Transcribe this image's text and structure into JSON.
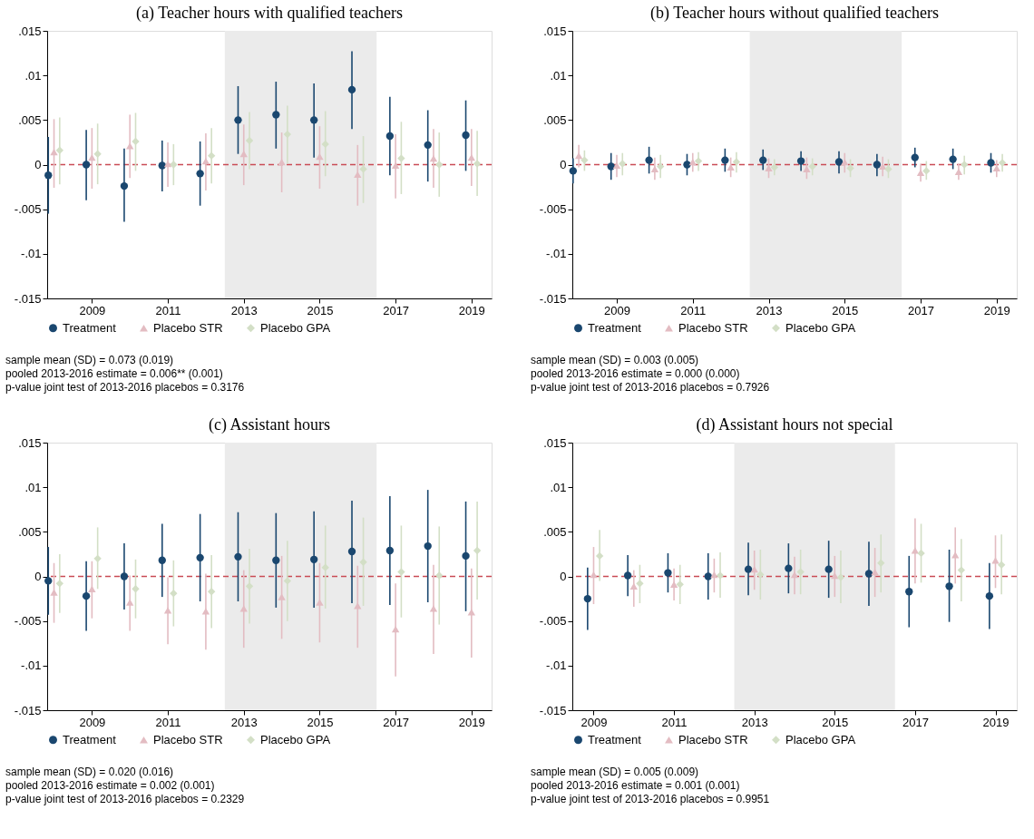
{
  "chart_data": [
    {
      "type": "scatter",
      "title": "(a) Teacher hours with qualified teachers",
      "xlim": [
        2007.82,
        2019.53
      ],
      "ylim": [
        -0.015,
        0.015
      ],
      "xticks": [
        2009,
        2011,
        2013,
        2015,
        2017,
        2019
      ],
      "yticks": [
        {
          "value": -0.015,
          "label": "-.015"
        },
        {
          "value": -0.01,
          "label": "-.01"
        },
        {
          "value": -0.005,
          "label": "-.005"
        },
        0,
        {
          "value": 0.005,
          "label": ".005"
        },
        {
          "value": 0.01,
          "label": ".01"
        },
        {
          "value": 0.015,
          "label": ".015"
        }
      ],
      "grid": false,
      "legend": "bottom",
      "bands": [
        {
          "axis": "x",
          "from": 2012.5,
          "to": 2016.5,
          "color": "#ebebeb"
        }
      ],
      "ref_lines": [
        {
          "axis": "y",
          "value": 0,
          "color": "#c94b55",
          "line_style": "dashed"
        }
      ],
      "annotations": [
        "sample mean (SD) = 0.073 (0.019)",
        "pooled 2013-2016 estimate = 0.006** (0.001)",
        "p-value joint test of 2013-2016 placebos = 0.3176"
      ],
      "series": [
        {
          "name": "Treatment",
          "color": "#1a476f",
          "marker": "circle",
          "x": [
            2007.85,
            2008.85,
            2009.85,
            2010.85,
            2011.85,
            2012.85,
            2013.85,
            2014.85,
            2015.85,
            2016.85,
            2017.85,
            2018.85
          ],
          "values": [
            -0.0012,
            0.0,
            -0.0024,
            -0.0001,
            -0.001,
            0.005,
            0.0056,
            0.005,
            0.0084,
            0.0032,
            0.0022,
            0.0033
          ],
          "errors": [
            [
              -0.0055,
              0.0031
            ],
            [
              -0.004,
              0.0039
            ],
            [
              -0.0064,
              0.0018
            ],
            [
              -0.003,
              0.0027
            ],
            [
              -0.0046,
              0.0026
            ],
            [
              0.0012,
              0.0088
            ],
            [
              0.0018,
              0.0093
            ],
            [
              0.0008,
              0.0091
            ],
            [
              0.004,
              0.0127
            ],
            [
              -0.0012,
              0.0076
            ],
            [
              -0.0019,
              0.0061
            ],
            [
              -0.0007,
              0.0072
            ]
          ]
        },
        {
          "name": "Placebo STR",
          "color": "#e3bcc2",
          "marker": "triangle",
          "x": [
            2008,
            2009,
            2010,
            2011,
            2012,
            2013,
            2014,
            2015,
            2016,
            2017,
            2018,
            2019
          ],
          "values": [
            0.0014,
            0.0008,
            0.0021,
            0.0001,
            0.0004,
            0.0012,
            0.0003,
            0.0009,
            -0.0011,
            -0.0001,
            0.0007,
            0.0008
          ],
          "errors": [
            [
              -0.0026,
              0.0051
            ],
            [
              -0.0027,
              0.0041
            ],
            [
              -0.0015,
              0.0056
            ],
            [
              -0.0025,
              0.0025
            ],
            [
              -0.0029,
              0.0035
            ],
            [
              -0.0023,
              0.0045
            ],
            [
              -0.0031,
              0.0036
            ],
            [
              -0.0027,
              0.0043
            ],
            [
              -0.0046,
              0.0022
            ],
            [
              -0.0038,
              0.0034
            ],
            [
              -0.0026,
              0.004
            ],
            [
              -0.0024,
              0.004
            ]
          ]
        },
        {
          "name": "Placebo GPA",
          "color": "#d3dfc6",
          "marker": "diamond",
          "x": [
            2008.15,
            2009.15,
            2010.15,
            2011.15,
            2012.15,
            2013.15,
            2014.15,
            2015.15,
            2016.15,
            2017.15,
            2018.15,
            2019.15
          ],
          "values": [
            0.0016,
            0.0012,
            0.0026,
            0.0,
            0.001,
            0.0027,
            0.0034,
            0.0023,
            -0.0005,
            0.0007,
            0.0,
            0.0001
          ],
          "errors": [
            [
              -0.0022,
              0.0053
            ],
            [
              -0.0022,
              0.0046
            ],
            [
              -0.0007,
              0.0058
            ],
            [
              -0.0023,
              0.0023
            ],
            [
              -0.0021,
              0.0041
            ],
            [
              -0.0005,
              0.0059
            ],
            [
              0.0001,
              0.0066
            ],
            [
              -0.0013,
              0.006
            ],
            [
              -0.0043,
              0.0032
            ],
            [
              -0.0033,
              0.0048
            ],
            [
              -0.0036,
              0.0036
            ],
            [
              -0.0035,
              0.0038
            ]
          ]
        }
      ]
    },
    {
      "type": "scatter",
      "title": "(b) Teacher hours without qualified teachers",
      "xlim": [
        2007.83,
        2019.53
      ],
      "ylim": [
        -0.015,
        0.015
      ],
      "xticks": [
        2009,
        2011,
        2013,
        2015,
        2017,
        2019
      ],
      "yticks": [
        {
          "value": -0.015,
          "label": "-.015"
        },
        {
          "value": -0.01,
          "label": "-.01"
        },
        {
          "value": -0.005,
          "label": "-.005"
        },
        0,
        {
          "value": 0.005,
          "label": ".005"
        },
        {
          "value": 0.01,
          "label": ".01"
        },
        {
          "value": 0.015,
          "label": ".015"
        }
      ],
      "grid": false,
      "legend": "bottom",
      "bands": [
        {
          "axis": "x",
          "from": 2012.5,
          "to": 2016.5,
          "color": "#ebebeb"
        }
      ],
      "ref_lines": [
        {
          "axis": "y",
          "value": 0,
          "color": "#c94b55",
          "line_style": "dashed"
        }
      ],
      "annotations": [
        "sample mean (SD) = 0.003 (0.005)",
        "pooled 2013-2016 estimate = 0.000 (0.000)",
        "p-value joint test of 2013-2016 placebos = 0.7926"
      ],
      "series": [
        {
          "name": "Treatment",
          "color": "#1a476f",
          "marker": "circle",
          "x": [
            2007.85,
            2008.85,
            2009.85,
            2010.85,
            2011.85,
            2012.85,
            2013.85,
            2014.85,
            2015.85,
            2016.85,
            2017.85,
            2018.85
          ],
          "values": [
            -0.0007,
            -0.0002,
            0.0005,
            0.0,
            0.0005,
            0.0005,
            0.0004,
            0.0003,
            0.0,
            0.0008,
            0.0006,
            0.0002
          ],
          "errors": [
            [
              -0.0021,
              0.0007
            ],
            [
              -0.0017,
              0.0013
            ],
            [
              -0.001,
              0.002
            ],
            [
              -0.0012,
              0.0012
            ],
            [
              -0.0008,
              0.0018
            ],
            [
              -0.0006,
              0.0017
            ],
            [
              -0.0007,
              0.0015
            ],
            [
              -0.001,
              0.0015
            ],
            [
              -0.0013,
              0.0012
            ],
            [
              -0.0003,
              0.0019
            ],
            [
              -0.0005,
              0.0018
            ],
            [
              -0.0009,
              0.0013
            ]
          ]
        },
        {
          "name": "Placebo STR",
          "color": "#e3bcc2",
          "marker": "triangle",
          "x": [
            2008,
            2009,
            2010,
            2011,
            2012,
            2013,
            2014,
            2015,
            2016,
            2017,
            2018,
            2019
          ],
          "values": [
            0.001,
            -0.0001,
            -0.0005,
            0.0003,
            -0.0003,
            -0.0004,
            -0.0005,
            0.0003,
            -0.0002,
            -0.0009,
            -0.0008,
            -0.0004
          ],
          "errors": [
            [
              -0.0003,
              0.0022
            ],
            [
              -0.0014,
              0.0011
            ],
            [
              -0.0017,
              0.0008
            ],
            [
              -0.0008,
              0.0013
            ],
            [
              -0.0014,
              0.0008
            ],
            [
              -0.0015,
              0.0007
            ],
            [
              -0.0016,
              0.0008
            ],
            [
              -0.0009,
              0.0013
            ],
            [
              -0.0013,
              0.0009
            ],
            [
              -0.0019,
              0.0001
            ],
            [
              -0.0017,
              0.0001
            ],
            [
              -0.0014,
              0.0005
            ]
          ]
        },
        {
          "name": "Placebo GPA",
          "color": "#d3dfc6",
          "marker": "diamond",
          "x": [
            2008.15,
            2009.15,
            2010.15,
            2011.15,
            2012.15,
            2013.15,
            2014.15,
            2015.15,
            2016.15,
            2017.15,
            2018.15,
            2019.15
          ],
          "values": [
            0.0005,
            0.0001,
            -0.0002,
            0.0004,
            0.0003,
            -0.0003,
            -0.0002,
            -0.0004,
            -0.0005,
            -0.0007,
            0.0,
            0.0002
          ],
          "errors": [
            [
              -0.0007,
              0.0016
            ],
            [
              -0.0012,
              0.0013
            ],
            [
              -0.0015,
              0.0011
            ],
            [
              -0.0007,
              0.0014
            ],
            [
              -0.0009,
              0.0014
            ],
            [
              -0.0012,
              0.0006
            ],
            [
              -0.0012,
              0.0007
            ],
            [
              -0.0014,
              0.0006
            ],
            [
              -0.0015,
              0.0006
            ],
            [
              -0.0017,
              0.0004
            ],
            [
              -0.0011,
              0.001
            ],
            [
              -0.0008,
              0.0012
            ]
          ]
        }
      ]
    },
    {
      "type": "scatter",
      "title": "(c) Assistant hours",
      "xlim": [
        2007.82,
        2019.53
      ],
      "ylim": [
        -0.015,
        0.015
      ],
      "xticks": [
        2009,
        2011,
        2013,
        2015,
        2017,
        2019
      ],
      "yticks": [
        {
          "value": -0.015,
          "label": "-.015"
        },
        {
          "value": -0.01,
          "label": "-.01"
        },
        {
          "value": -0.005,
          "label": "-.005"
        },
        0,
        {
          "value": 0.005,
          "label": ".005"
        },
        {
          "value": 0.01,
          "label": ".01"
        },
        {
          "value": 0.015,
          "label": ".015"
        }
      ],
      "grid": false,
      "legend": "bottom",
      "bands": [
        {
          "axis": "x",
          "from": 2012.5,
          "to": 2016.5,
          "color": "#ebebeb"
        }
      ],
      "ref_lines": [
        {
          "axis": "y",
          "value": 0,
          "color": "#c94b55",
          "line_style": "dashed"
        }
      ],
      "annotations": [
        "sample mean (SD) = 0.020 (0.016)",
        "pooled 2013-2016 estimate = 0.002 (0.001)",
        "p-value joint test of 2013-2016 placebos = 0.2329"
      ],
      "series": [
        {
          "name": "Treatment",
          "color": "#1a476f",
          "marker": "circle",
          "x": [
            2007.85,
            2008.85,
            2009.85,
            2010.85,
            2011.85,
            2012.85,
            2013.85,
            2014.85,
            2015.85,
            2016.85,
            2017.85,
            2018.85
          ],
          "values": [
            -0.0005,
            -0.0022,
            0.0,
            0.0018,
            0.0021,
            0.0022,
            0.0018,
            0.0019,
            0.0028,
            0.0029,
            0.0034,
            0.0023
          ],
          "errors": [
            [
              -0.0043,
              0.0033
            ],
            [
              -0.0061,
              0.0017
            ],
            [
              -0.0037,
              0.0037
            ],
            [
              -0.0023,
              0.0059
            ],
            [
              -0.0028,
              0.007
            ],
            [
              -0.0028,
              0.0072
            ],
            [
              -0.0035,
              0.0071
            ],
            [
              -0.0035,
              0.0073
            ],
            [
              -0.003,
              0.0085
            ],
            [
              -0.0032,
              0.009
            ],
            [
              -0.0029,
              0.0097
            ],
            [
              -0.0039,
              0.0084
            ]
          ]
        },
        {
          "name": "Placebo STR",
          "color": "#e3bcc2",
          "marker": "triangle",
          "x": [
            2008,
            2009,
            2010,
            2011,
            2012,
            2013,
            2014,
            2015,
            2016,
            2017,
            2018,
            2019
          ],
          "values": [
            -0.0018,
            -0.0014,
            -0.0029,
            -0.0038,
            -0.0039,
            -0.0036,
            -0.0023,
            -0.0029,
            -0.0033,
            -0.0059,
            -0.0036,
            -0.004
          ],
          "errors": [
            [
              -0.0052,
              0.0015
            ],
            [
              -0.0047,
              0.0017
            ],
            [
              -0.0061,
              0.0001
            ],
            [
              -0.0076,
              -0.0001
            ],
            [
              -0.0082,
              0.0003
            ],
            [
              -0.008,
              0.0007
            ],
            [
              -0.007,
              0.0023
            ],
            [
              -0.0074,
              0.0015
            ],
            [
              -0.008,
              0.0012
            ],
            [
              -0.0112,
              -0.0008
            ],
            [
              -0.0087,
              0.0013
            ],
            [
              -0.0091,
              0.0009
            ]
          ]
        },
        {
          "name": "Placebo GPA",
          "color": "#d3dfc6",
          "marker": "diamond",
          "x": [
            2008.15,
            2009.15,
            2010.15,
            2011.15,
            2012.15,
            2013.15,
            2014.15,
            2015.15,
            2016.15,
            2017.15,
            2018.15,
            2019.15
          ],
          "values": [
            -0.0008,
            0.002,
            -0.0014,
            -0.0019,
            -0.0017,
            -0.0011,
            -0.0005,
            0.001,
            0.0016,
            0.0005,
            0.0001,
            0.0029
          ],
          "errors": [
            [
              -0.0041,
              0.0025
            ],
            [
              -0.0014,
              0.0055
            ],
            [
              -0.0047,
              0.0019
            ],
            [
              -0.0056,
              0.0018
            ],
            [
              -0.0058,
              0.0024
            ],
            [
              -0.0053,
              0.0031
            ],
            [
              -0.005,
              0.004
            ],
            [
              -0.0036,
              0.0057
            ],
            [
              -0.0033,
              0.0066
            ],
            [
              -0.0046,
              0.0057
            ],
            [
              -0.0054,
              0.0056
            ],
            [
              -0.0026,
              0.0084
            ]
          ]
        }
      ]
    },
    {
      "type": "scatter",
      "title": "(d) Assistant hours not special",
      "xlim": [
        2008.47,
        2019.53
      ],
      "ylim": [
        -0.015,
        0.015
      ],
      "xticks": [
        2009,
        2011,
        2013,
        2015,
        2017,
        2019
      ],
      "yticks": [
        {
          "value": -0.015,
          "label": "-.015"
        },
        {
          "value": -0.01,
          "label": "-.01"
        },
        {
          "value": -0.005,
          "label": "-.005"
        },
        0,
        {
          "value": 0.005,
          "label": ".005"
        },
        {
          "value": 0.01,
          "label": ".01"
        },
        {
          "value": 0.015,
          "label": ".015"
        }
      ],
      "grid": false,
      "legend": "bottom",
      "bands": [
        {
          "axis": "x",
          "from": 2012.5,
          "to": 2016.5,
          "color": "#ebebeb"
        }
      ],
      "ref_lines": [
        {
          "axis": "y",
          "value": 0,
          "color": "#c94b55",
          "line_style": "dashed"
        }
      ],
      "annotations": [
        "sample mean (SD) = 0.005 (0.009)",
        "pooled 2013-2016 estimate = 0.001 (0.001)",
        "p-value joint test of 2013-2016 placebos = 0.9951"
      ],
      "series": [
        {
          "name": "Treatment",
          "color": "#1a476f",
          "marker": "circle",
          "x": [
            2008.85,
            2009.85,
            2010.85,
            2011.85,
            2012.85,
            2013.85,
            2014.85,
            2015.85,
            2016.85,
            2017.85,
            2018.85
          ],
          "values": [
            -0.0025,
            0.0001,
            0.0004,
            0.0,
            0.0008,
            0.0009,
            0.0008,
            0.0003,
            -0.0017,
            -0.0011,
            -0.0022
          ],
          "errors": [
            [
              -0.006,
              0.001
            ],
            [
              -0.0022,
              0.0024
            ],
            [
              -0.0018,
              0.0026
            ],
            [
              -0.0026,
              0.0026
            ],
            [
              -0.0021,
              0.0038
            ],
            [
              -0.0019,
              0.0037
            ],
            [
              -0.0024,
              0.004
            ],
            [
              -0.0033,
              0.0039
            ],
            [
              -0.0057,
              0.0023
            ],
            [
              -0.0051,
              0.003
            ],
            [
              -0.0059,
              0.0015
            ]
          ]
        },
        {
          "name": "Placebo STR",
          "color": "#e3bcc2",
          "marker": "triangle",
          "x": [
            2009,
            2010,
            2011,
            2012,
            2013,
            2014,
            2015,
            2016,
            2017,
            2018,
            2019
          ],
          "values": [
            0.0002,
            -0.0011,
            -0.0009,
            0.0002,
            0.0008,
            0.0002,
            0.0001,
            0.0005,
            0.0029,
            0.0024,
            0.0018
          ],
          "errors": [
            [
              -0.0031,
              0.0033
            ],
            [
              -0.0034,
              0.0007
            ],
            [
              -0.0027,
              0.0009
            ],
            [
              -0.0018,
              0.002
            ],
            [
              -0.0015,
              0.0029
            ],
            [
              -0.002,
              0.0022
            ],
            [
              -0.0023,
              0.0023
            ],
            [
              -0.0023,
              0.0032
            ],
            [
              -0.0008,
              0.0065
            ],
            [
              -0.0008,
              0.0055
            ],
            [
              -0.0013,
              0.0046
            ]
          ]
        },
        {
          "name": "Placebo GPA",
          "color": "#d3dfc6",
          "marker": "diamond",
          "x": [
            2009.15,
            2010.15,
            2011.15,
            2012.15,
            2013.15,
            2014.15,
            2015.15,
            2016.15,
            2017.15,
            2018.15,
            2019.15
          ],
          "values": [
            0.0023,
            -0.0008,
            -0.0009,
            0.0001,
            0.0002,
            0.0005,
            -0.0001,
            0.0015,
            0.0026,
            0.0007,
            0.0013
          ],
          "errors": [
            [
              -0.0005,
              0.0052
            ],
            [
              -0.003,
              0.0013
            ],
            [
              -0.0031,
              0.0013
            ],
            [
              -0.0024,
              0.0027
            ],
            [
              -0.0026,
              0.003
            ],
            [
              -0.002,
              0.003
            ],
            [
              -0.003,
              0.0029
            ],
            [
              -0.0018,
              0.0047
            ],
            [
              -0.0007,
              0.0059
            ],
            [
              -0.0028,
              0.0042
            ],
            [
              -0.002,
              0.0047
            ]
          ]
        }
      ]
    }
  ]
}
